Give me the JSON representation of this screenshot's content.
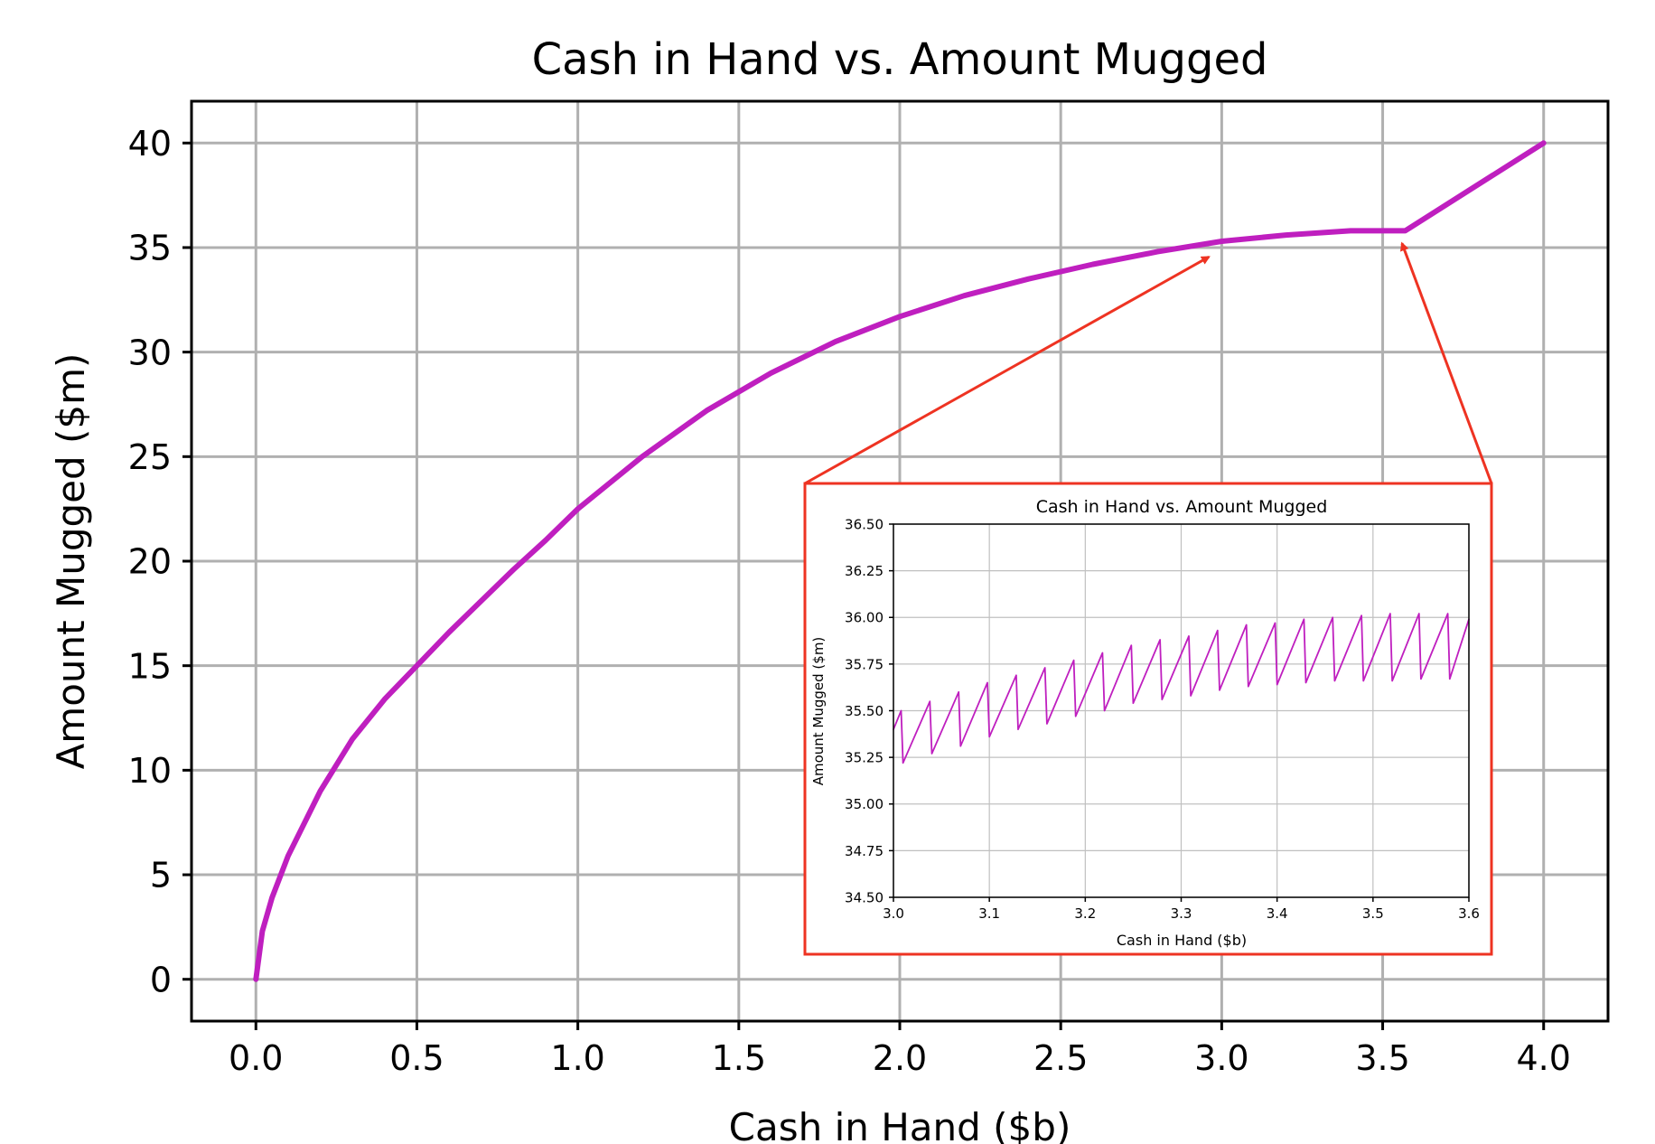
{
  "chart_data": [
    {
      "type": "line",
      "title": "Cash in Hand vs. Amount Mugged",
      "xlabel": "Cash in Hand ($b)",
      "ylabel": "Amount Mugged ($m)",
      "xlim": [
        -0.2,
        4.2
      ],
      "ylim": [
        -2,
        42
      ],
      "xticks": [
        "0.0",
        "0.5",
        "1.0",
        "1.5",
        "2.0",
        "2.5",
        "3.0",
        "3.5",
        "4.0"
      ],
      "yticks": [
        "0",
        "5",
        "10",
        "15",
        "20",
        "25",
        "30",
        "35",
        "40"
      ],
      "grid": true,
      "line_color": "#bf1fbf",
      "series": [
        {
          "x": [
            0.0,
            0.02,
            0.05,
            0.1,
            0.2,
            0.3,
            0.4,
            0.5,
            0.6,
            0.7,
            0.8,
            0.9,
            1.0,
            1.2,
            1.4,
            1.6,
            1.8,
            2.0,
            2.2,
            2.4,
            2.6,
            2.8,
            3.0,
            3.2,
            3.4,
            3.57,
            4.0
          ],
          "y": [
            0.0,
            2.3,
            3.9,
            5.9,
            9.0,
            11.5,
            13.4,
            15.0,
            16.6,
            18.1,
            19.6,
            21.0,
            22.5,
            25.0,
            27.2,
            29.0,
            30.5,
            31.7,
            32.7,
            33.5,
            34.2,
            34.8,
            35.3,
            35.6,
            35.8,
            35.8,
            40.0
          ]
        }
      ]
    },
    {
      "type": "line",
      "title": "Cash in Hand vs. Amount Mugged",
      "xlabel": "Cash in Hand ($b)",
      "ylabel": "Amount Mugged ($m)",
      "xlim": [
        3.0,
        3.6
      ],
      "ylim": [
        34.5,
        36.5
      ],
      "xticks": [
        "3.0",
        "3.1",
        "3.2",
        "3.3",
        "3.4",
        "3.5",
        "3.6"
      ],
      "yticks": [
        "34.50",
        "34.75",
        "35.00",
        "35.25",
        "35.50",
        "35.75",
        "36.00",
        "36.25",
        "36.50"
      ],
      "grid": true,
      "line_color": "#bf1fbf",
      "series": [
        {
          "x": [
            3.0,
            3.008,
            3.01,
            3.038,
            3.04,
            3.068,
            3.07,
            3.098,
            3.1,
            3.128,
            3.13,
            3.158,
            3.16,
            3.188,
            3.19,
            3.218,
            3.22,
            3.248,
            3.25,
            3.278,
            3.28,
            3.308,
            3.31,
            3.338,
            3.34,
            3.368,
            3.37,
            3.398,
            3.4,
            3.428,
            3.43,
            3.458,
            3.46,
            3.488,
            3.49,
            3.518,
            3.52,
            3.548,
            3.55,
            3.578,
            3.58,
            3.6
          ],
          "y": [
            35.4,
            35.5,
            35.22,
            35.55,
            35.27,
            35.6,
            35.31,
            35.65,
            35.36,
            35.69,
            35.4,
            35.73,
            35.43,
            35.77,
            35.47,
            35.81,
            35.5,
            35.85,
            35.54,
            35.88,
            35.56,
            35.9,
            35.58,
            35.93,
            35.61,
            35.96,
            35.63,
            35.97,
            35.64,
            35.99,
            35.65,
            36.0,
            35.66,
            36.01,
            35.66,
            36.02,
            35.66,
            36.02,
            35.67,
            36.02,
            35.67,
            35.99
          ]
        }
      ]
    }
  ]
}
